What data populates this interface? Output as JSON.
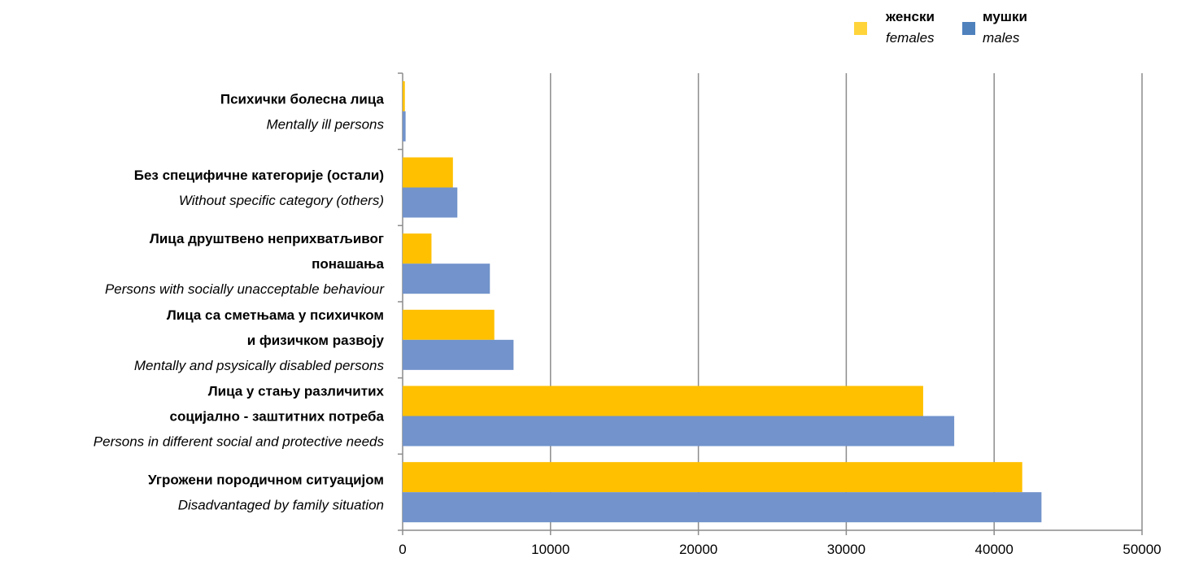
{
  "chart_data": {
    "type": "bar",
    "orientation": "horizontal",
    "categories": [
      {
        "sr": [
          "Психички болесна лица"
        ],
        "en": "Mentally ill persons"
      },
      {
        "sr": [
          "Без специфичне категорије (остали)"
        ],
        "en": "Without specific category (others)"
      },
      {
        "sr": [
          "Лица друштвено неприхватљивог",
          "понашања"
        ],
        "en": "Persons with socially unacceptable behaviour"
      },
      {
        "sr": [
          "Лица са сметњама у психичком",
          "и физичком развоју"
        ],
        "en": "Mentally and psysically disabled persons"
      },
      {
        "sr": [
          "Лица у стању различитих",
          "социјално - заштитних потреба"
        ],
        "en": "Persons in different social and protective needs"
      },
      {
        "sr": [
          "Угрожени породичном ситуацијом"
        ],
        "en": "Disadvantaged by family situation"
      }
    ],
    "series": [
      {
        "name": "женски",
        "name_en": "females",
        "color": "#ffc000",
        "values": [
          150,
          3400,
          1950,
          6200,
          35200,
          41900
        ]
      },
      {
        "name": "мушки",
        "name_en": "males",
        "color": "#7293cb",
        "values": [
          200,
          3700,
          5900,
          7500,
          37300,
          43200
        ]
      }
    ],
    "xlim": [
      0,
      50000
    ],
    "xticks": [
      0,
      10000,
      20000,
      30000,
      40000,
      50000
    ],
    "grid": "vertical",
    "legend": "top-right",
    "legend_marker_colors": {
      "females": "#ffd43b",
      "males": "#4f81bd"
    }
  }
}
